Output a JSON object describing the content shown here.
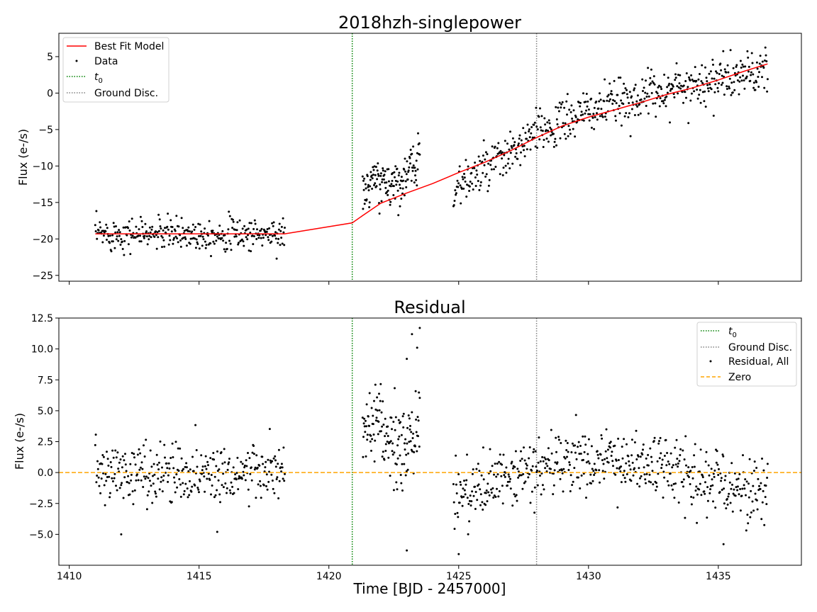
{
  "chart_data": [
    {
      "type": "scatter",
      "title": "2018hzh-singlepower",
      "xlabel": "",
      "ylabel": "Flux (e-/s)",
      "xlim": [
        1409.6,
        1438.2
      ],
      "ylim": [
        -25.8,
        8.2
      ],
      "xticks": [
        1410,
        1415,
        1420,
        1425,
        1430,
        1435
      ],
      "yticks": [
        -25,
        -20,
        -15,
        -10,
        -5,
        0,
        5
      ],
      "ytick_labels": [
        "−25",
        "−20",
        "−15",
        "−10",
        "−5",
        "0",
        "5"
      ],
      "grid": false,
      "legend_position": "upper-left",
      "legend": [
        {
          "label": "Best Fit Model",
          "kind": "line",
          "color": "#ff0000"
        },
        {
          "label": "Data",
          "kind": "point",
          "color": "#000000"
        },
        {
          "label": "t",
          "sub": "0",
          "kind": "dotted-line",
          "color": "#008000"
        },
        {
          "label": "Ground Disc.",
          "kind": "dotted-line",
          "color": "#808080"
        }
      ],
      "vlines": [
        {
          "name": "t0",
          "x": 1420.9,
          "color": "#008000"
        },
        {
          "name": "Ground Disc.",
          "x": 1428.0,
          "color": "#808080"
        }
      ],
      "model_line": {
        "x": [
          1411.0,
          1418.3,
          1420.9,
          1421.3,
          1422.0,
          1423.0,
          1424.0,
          1425.0,
          1426.0,
          1427.0,
          1428.0,
          1429.0,
          1430.0,
          1431.0,
          1432.0,
          1433.0,
          1434.0,
          1435.0,
          1436.0,
          1436.9
        ],
        "y": [
          -19.3,
          -19.3,
          -17.8,
          -16.8,
          -15.1,
          -13.7,
          -12.4,
          -10.9,
          -9.5,
          -7.9,
          -6.1,
          -4.5,
          -3.3,
          -2.3,
          -1.3,
          -0.2,
          0.7,
          1.8,
          3.0,
          4.0
        ]
      },
      "data_segments": [
        {
          "x_start": 1411.0,
          "x_end": 1418.3,
          "n": 330,
          "y": [
            [
              1411.0,
              -19.3
            ],
            [
              1418.3,
              -19.3
            ]
          ],
          "noise": 1.1
        },
        {
          "x_start": 1421.3,
          "x_end": 1423.5,
          "n": 140,
          "y": [
            [
              1421.3,
              -14.0
            ],
            [
              1421.7,
              -12.0
            ],
            [
              1422.2,
              -12.5
            ],
            [
              1422.8,
              -12.0
            ],
            [
              1423.3,
              -10.0
            ],
            [
              1423.5,
              -8.0
            ]
          ],
          "noise": 1.5
        },
        {
          "x_start": 1424.8,
          "x_end": 1436.9,
          "n": 560,
          "y": [
            [
              1424.8,
              -13.0
            ],
            [
              1426.0,
              -10.5
            ],
            [
              1427.0,
              -8.5
            ],
            [
              1428.0,
              -5.5
            ],
            [
              1429.0,
              -4.0
            ],
            [
              1430.0,
              -2.5
            ],
            [
              1431.0,
              -1.5
            ],
            [
              1432.0,
              -0.5
            ],
            [
              1433.0,
              0.5
            ],
            [
              1434.0,
              1.2
            ],
            [
              1435.0,
              1.8
            ],
            [
              1436.0,
              2.5
            ],
            [
              1436.9,
              3.0
            ]
          ],
          "noise": 1.5
        }
      ]
    },
    {
      "type": "scatter",
      "title": "Residual",
      "xlabel": "Time [BJD - 2457000]",
      "ylabel": "Flux (e-/s)",
      "xlim": [
        1409.6,
        1438.2
      ],
      "ylim": [
        -7.5,
        12.5
      ],
      "xticks": [
        1410,
        1415,
        1420,
        1425,
        1430,
        1435
      ],
      "xtick_labels": [
        "1410",
        "1415",
        "1420",
        "1425",
        "1430",
        "1435"
      ],
      "yticks": [
        -5.0,
        -2.5,
        0.0,
        2.5,
        5.0,
        7.5,
        10.0,
        12.5
      ],
      "ytick_labels": [
        "−5.0",
        "−2.5",
        "0.0",
        "2.5",
        "5.0",
        "7.5",
        "10.0",
        "12.5"
      ],
      "grid": false,
      "legend_position": "upper-right",
      "legend": [
        {
          "label": "t",
          "sub": "0",
          "kind": "dotted-line",
          "color": "#008000"
        },
        {
          "label": "Ground Disc.",
          "kind": "dotted-line",
          "color": "#808080"
        },
        {
          "label": "Residual, All",
          "kind": "point",
          "color": "#000000"
        },
        {
          "label": "Zero",
          "kind": "dashed-line",
          "color": "#ffa500"
        }
      ],
      "vlines": [
        {
          "name": "t0",
          "x": 1420.9,
          "color": "#008000"
        },
        {
          "name": "Ground Disc.",
          "x": 1428.0,
          "color": "#808080"
        }
      ],
      "hline": {
        "name": "Zero",
        "y": 0.0,
        "color": "#ffa500"
      },
      "residual_segments": [
        {
          "x_start": 1411.0,
          "x_end": 1418.3,
          "n": 330,
          "y": [
            [
              1411.0,
              0.0
            ],
            [
              1418.3,
              0.0
            ]
          ],
          "noise": 1.2
        },
        {
          "x_start": 1421.3,
          "x_end": 1423.5,
          "n": 140,
          "y": [
            [
              1421.3,
              3.0
            ],
            [
              1421.8,
              4.0
            ],
            [
              1422.3,
              2.5
            ],
            [
              1422.9,
              1.5
            ],
            [
              1423.3,
              3.0
            ],
            [
              1423.5,
              5.0
            ]
          ],
          "noise": 1.6
        },
        {
          "x_start": 1424.8,
          "x_end": 1436.9,
          "n": 560,
          "y": [
            [
              1424.8,
              -1.8
            ],
            [
              1426.0,
              -1.2
            ],
            [
              1427.0,
              -0.5
            ],
            [
              1428.0,
              0.3
            ],
            [
              1429.0,
              0.8
            ],
            [
              1430.0,
              1.0
            ],
            [
              1431.0,
              0.9
            ],
            [
              1432.0,
              0.7
            ],
            [
              1433.0,
              0.4
            ],
            [
              1434.0,
              -0.2
            ],
            [
              1435.0,
              -0.8
            ],
            [
              1436.0,
              -1.2
            ],
            [
              1436.9,
              -1.6
            ]
          ],
          "noise": 1.3
        }
      ],
      "outliers": [
        [
          1423.2,
          11.2
        ],
        [
          1423.5,
          11.7
        ],
        [
          1423.4,
          10.1
        ],
        [
          1423.0,
          9.2
        ],
        [
          1423.0,
          -6.3
        ],
        [
          1425.0,
          -6.6
        ],
        [
          1435.2,
          -5.8
        ],
        [
          1415.7,
          -4.8
        ],
        [
          1412.0,
          -5.0
        ]
      ]
    }
  ]
}
